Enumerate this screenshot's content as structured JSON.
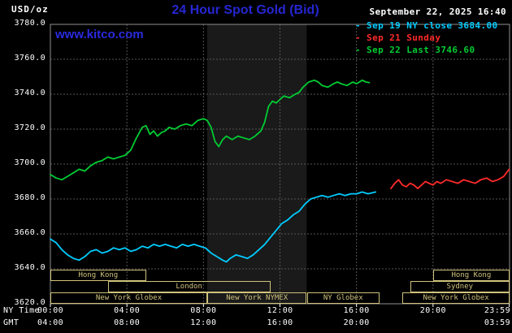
{
  "header": {
    "units_label": "USD/oz",
    "title": "24 Hour Spot Gold (Bid)",
    "title_color": "#2626d2",
    "datetime": "September 22, 2025 16:40",
    "datetime_color": "#ffffff",
    "watermark": "www.kitco.com",
    "watermark_color": "#2a2ae0",
    "legend_dash": "-",
    "legend": [
      {
        "label": "Sep 19 NY close 3684.00",
        "color": "#00ccff"
      },
      {
        "label": "Sep 21 Sunday",
        "color": "#ff2a2a"
      },
      {
        "label": "Sep 22 Last 3746.60",
        "color": "#00cc33"
      }
    ]
  },
  "footer": {
    "ny_time_label": "NY Time",
    "gmt_label": "GMT"
  },
  "chart_data": {
    "type": "line",
    "title": "24 Hour Spot Gold (Bid)",
    "ylabel": "USD/oz",
    "xlabel": "NY Time / GMT",
    "ylim": [
      3620,
      3780
    ],
    "xlim_hours": [
      0,
      24
    ],
    "grid": true,
    "legend_position": "top-right",
    "grid_color": "#555555",
    "frame_color": "#909090",
    "tick_color": "#ffffff",
    "band_hours": [
      8.2,
      13.4
    ],
    "band_color": "#1a1a1a",
    "session_color": "#cfc27c",
    "y_ticks": [
      {
        "value": 3780,
        "label": "3780.0"
      },
      {
        "value": 3760,
        "label": "3760.0"
      },
      {
        "value": 3740,
        "label": "3740.0"
      },
      {
        "value": 3720,
        "label": "3720.0"
      },
      {
        "value": 3700,
        "label": "3700.0"
      },
      {
        "value": 3680,
        "label": "3680.0"
      },
      {
        "value": 3660,
        "label": "3660.0"
      },
      {
        "value": 3640,
        "label": "3640.0"
      },
      {
        "value": 3620,
        "label": "3620.0"
      }
    ],
    "x_ticks_ny": [
      {
        "hour": 0,
        "label": "00:00"
      },
      {
        "hour": 4,
        "label": "04:00"
      },
      {
        "hour": 8,
        "label": "08:00"
      },
      {
        "hour": 12,
        "label": "12:00"
      },
      {
        "hour": 16,
        "label": "16:00"
      },
      {
        "hour": 20,
        "label": "20:00"
      },
      {
        "hour": 23.983,
        "label": "23:59"
      }
    ],
    "x_ticks_gmt": [
      {
        "hour": 0,
        "label": "04:00"
      },
      {
        "hour": 4,
        "label": "08:00"
      },
      {
        "hour": 8,
        "label": "12:00"
      },
      {
        "hour": 12,
        "label": "16:00"
      },
      {
        "hour": 16,
        "label": "20:00"
      },
      {
        "hour": 23.983,
        "label": "03:59"
      }
    ],
    "sessions": [
      {
        "row": 0,
        "start": 0,
        "end": 5,
        "label": "Hong Kong"
      },
      {
        "row": 0,
        "start": 20,
        "end": 24,
        "label": "Hong Kong"
      },
      {
        "row": 1,
        "start": 3,
        "end": 11.5,
        "label": "London"
      },
      {
        "row": 1,
        "start": 18.8,
        "end": 24,
        "label": "Sydney"
      },
      {
        "row": 2,
        "start": 0,
        "end": 8.2,
        "label": "New York Globex"
      },
      {
        "row": 2,
        "start": 8.2,
        "end": 13.4,
        "label": "New York NYMEX"
      },
      {
        "row": 2,
        "start": 13.4,
        "end": 17.2,
        "label": "NY Globex"
      },
      {
        "row": 2,
        "start": 18.4,
        "end": 24,
        "label": "New York Globex"
      }
    ],
    "series": [
      {
        "id": "sep-19-ny-close",
        "name": "Sep 19 NY close",
        "close_value": 3684.0,
        "color": "#00ccff",
        "points": [
          [
            0,
            3657
          ],
          [
            0.3,
            3655
          ],
          [
            0.6,
            3651
          ],
          [
            0.9,
            3648
          ],
          [
            1.2,
            3646
          ],
          [
            1.5,
            3645
          ],
          [
            1.8,
            3647
          ],
          [
            2.1,
            3650
          ],
          [
            2.4,
            3651
          ],
          [
            2.7,
            3649
          ],
          [
            3,
            3650
          ],
          [
            3.3,
            3652
          ],
          [
            3.6,
            3651
          ],
          [
            3.9,
            3652
          ],
          [
            4.2,
            3650
          ],
          [
            4.5,
            3651
          ],
          [
            4.8,
            3653
          ],
          [
            5.1,
            3652
          ],
          [
            5.4,
            3654
          ],
          [
            5.7,
            3653
          ],
          [
            6,
            3654
          ],
          [
            6.3,
            3653
          ],
          [
            6.6,
            3652
          ],
          [
            6.9,
            3654
          ],
          [
            7.2,
            3653
          ],
          [
            7.5,
            3654
          ],
          [
            7.8,
            3653
          ],
          [
            8.1,
            3652
          ],
          [
            8.4,
            3649
          ],
          [
            8.7,
            3647
          ],
          [
            9,
            3645
          ],
          [
            9.2,
            3644
          ],
          [
            9.4,
            3646
          ],
          [
            9.7,
            3648
          ],
          [
            10,
            3647
          ],
          [
            10.3,
            3646
          ],
          [
            10.6,
            3648
          ],
          [
            10.9,
            3651
          ],
          [
            11.2,
            3654
          ],
          [
            11.5,
            3658
          ],
          [
            11.8,
            3662
          ],
          [
            12.1,
            3666
          ],
          [
            12.4,
            3668
          ],
          [
            12.7,
            3671
          ],
          [
            13,
            3673
          ],
          [
            13.3,
            3677
          ],
          [
            13.6,
            3680
          ],
          [
            13.9,
            3681
          ],
          [
            14.2,
            3682
          ],
          [
            14.5,
            3681
          ],
          [
            14.8,
            3682
          ],
          [
            15.1,
            3683
          ],
          [
            15.4,
            3682
          ],
          [
            15.7,
            3683
          ],
          [
            16,
            3683
          ],
          [
            16.3,
            3684
          ],
          [
            16.6,
            3683
          ],
          [
            17,
            3684
          ]
        ]
      },
      {
        "id": "sep-21-sunday",
        "name": "Sep 21 Sunday",
        "color": "#ff2a2a",
        "points": [
          [
            17.8,
            3686
          ],
          [
            18,
            3689
          ],
          [
            18.2,
            3691
          ],
          [
            18.4,
            3688
          ],
          [
            18.6,
            3687
          ],
          [
            18.8,
            3689
          ],
          [
            19,
            3688
          ],
          [
            19.2,
            3686
          ],
          [
            19.4,
            3688
          ],
          [
            19.6,
            3690
          ],
          [
            19.8,
            3689
          ],
          [
            20,
            3688
          ],
          [
            20.2,
            3690
          ],
          [
            20.4,
            3689
          ],
          [
            20.7,
            3691
          ],
          [
            21,
            3690
          ],
          [
            21.3,
            3689
          ],
          [
            21.6,
            3691
          ],
          [
            21.9,
            3690
          ],
          [
            22.2,
            3689
          ],
          [
            22.5,
            3691
          ],
          [
            22.8,
            3692
          ],
          [
            23.1,
            3690
          ],
          [
            23.4,
            3691
          ],
          [
            23.7,
            3693
          ],
          [
            23.98,
            3697
          ]
        ]
      },
      {
        "id": "sep-22-last",
        "name": "Sep 22 Last",
        "last_value": 3746.6,
        "color": "#00cc33",
        "points": [
          [
            0,
            3694
          ],
          [
            0.3,
            3692
          ],
          [
            0.6,
            3691
          ],
          [
            0.9,
            3693
          ],
          [
            1.2,
            3695
          ],
          [
            1.5,
            3697
          ],
          [
            1.8,
            3696
          ],
          [
            2.1,
            3699
          ],
          [
            2.4,
            3701
          ],
          [
            2.7,
            3702
          ],
          [
            3,
            3704
          ],
          [
            3.3,
            3703
          ],
          [
            3.6,
            3704
          ],
          [
            3.9,
            3705
          ],
          [
            4.2,
            3708
          ],
          [
            4.5,
            3715
          ],
          [
            4.8,
            3721
          ],
          [
            5,
            3722
          ],
          [
            5.2,
            3717
          ],
          [
            5.4,
            3719
          ],
          [
            5.6,
            3716
          ],
          [
            5.8,
            3718
          ],
          [
            6,
            3719
          ],
          [
            6.2,
            3721
          ],
          [
            6.5,
            3720
          ],
          [
            6.8,
            3722
          ],
          [
            7.1,
            3723
          ],
          [
            7.4,
            3722
          ],
          [
            7.7,
            3725
          ],
          [
            8,
            3726
          ],
          [
            8.2,
            3725
          ],
          [
            8.4,
            3721
          ],
          [
            8.6,
            3713
          ],
          [
            8.8,
            3710
          ],
          [
            9,
            3714
          ],
          [
            9.2,
            3716
          ],
          [
            9.5,
            3714
          ],
          [
            9.8,
            3716
          ],
          [
            10.1,
            3715
          ],
          [
            10.4,
            3714
          ],
          [
            10.7,
            3716
          ],
          [
            11,
            3719
          ],
          [
            11.2,
            3724
          ],
          [
            11.4,
            3733
          ],
          [
            11.6,
            3736
          ],
          [
            11.8,
            3735
          ],
          [
            12,
            3737
          ],
          [
            12.2,
            3739
          ],
          [
            12.5,
            3738
          ],
          [
            12.8,
            3740
          ],
          [
            13,
            3741
          ],
          [
            13.2,
            3744
          ],
          [
            13.5,
            3747
          ],
          [
            13.8,
            3748
          ],
          [
            14,
            3747
          ],
          [
            14.2,
            3745
          ],
          [
            14.5,
            3744
          ],
          [
            14.8,
            3746
          ],
          [
            15,
            3747
          ],
          [
            15.2,
            3746
          ],
          [
            15.5,
            3745
          ],
          [
            15.8,
            3747
          ],
          [
            16,
            3746
          ],
          [
            16.3,
            3748
          ],
          [
            16.5,
            3747
          ],
          [
            16.67,
            3746.6
          ]
        ]
      }
    ]
  }
}
